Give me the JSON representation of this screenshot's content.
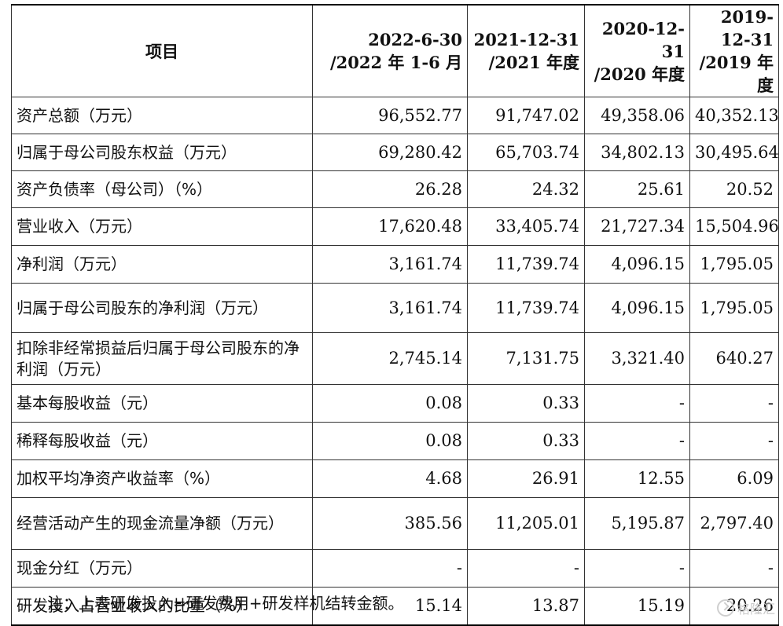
{
  "table": {
    "header": {
      "item": "项目",
      "cols": [
        [
          "2022-6-30",
          "/2022 年 1-6 月"
        ],
        [
          "2021-12-31",
          "/2021 年度"
        ],
        [
          "2020-12-31",
          "/2020 年度"
        ],
        [
          "2019-12-31",
          "/2019 年度"
        ]
      ]
    },
    "rows": [
      {
        "label": "资产总额（万元）",
        "values": [
          "96,552.77",
          "91,747.02",
          "49,358.06",
          "40,352.13"
        ]
      },
      {
        "label": "归属于母公司股东权益（万元）",
        "values": [
          "69,280.42",
          "65,703.74",
          "34,802.13",
          "30,495.64"
        ]
      },
      {
        "label": "资产负债率（母公司）（%）",
        "values": [
          "26.28",
          "24.32",
          "25.61",
          "20.52"
        ]
      },
      {
        "label": "营业收入（万元）",
        "values": [
          "17,620.48",
          "33,405.74",
          "21,727.34",
          "15,504.96"
        ]
      },
      {
        "label": "净利润（万元）",
        "values": [
          "3,161.74",
          "11,739.74",
          "4,096.15",
          "1,795.05"
        ]
      },
      {
        "label": "归属于母公司股东的净利润（万元）",
        "values": [
          "3,161.74",
          "11,739.74",
          "4,096.15",
          "1,795.05"
        ]
      },
      {
        "label": "扣除非经常损益后归属于母公司股东的净利润（万元）",
        "values": [
          "2,745.14",
          "7,131.75",
          "3,321.40",
          "640.27"
        ]
      },
      {
        "label": "基本每股收益（元）",
        "values": [
          "0.08",
          "0.33",
          "-",
          "-"
        ]
      },
      {
        "label": "稀释每股收益（元）",
        "values": [
          "0.08",
          "0.33",
          "-",
          "-"
        ]
      },
      {
        "label": "加权平均净资产收益率（%）",
        "values": [
          "4.68",
          "26.91",
          "12.55",
          "6.09"
        ]
      },
      {
        "label": "经营活动产生的现金流量净额（万元）",
        "values": [
          "385.56",
          "11,205.01",
          "5,195.87",
          "2,797.40"
        ]
      },
      {
        "label": "现金分红（万元）",
        "values": [
          "-",
          "-",
          "-",
          "-"
        ]
      },
      {
        "label": "研发投入占营业收入的比重（%）",
        "values": [
          "15.14",
          "13.87",
          "15.19",
          "20.26"
        ]
      }
    ]
  },
  "note": "注：上表研发投入=研发费用+研发样机结转金额。",
  "watermark": "格隆汇"
}
